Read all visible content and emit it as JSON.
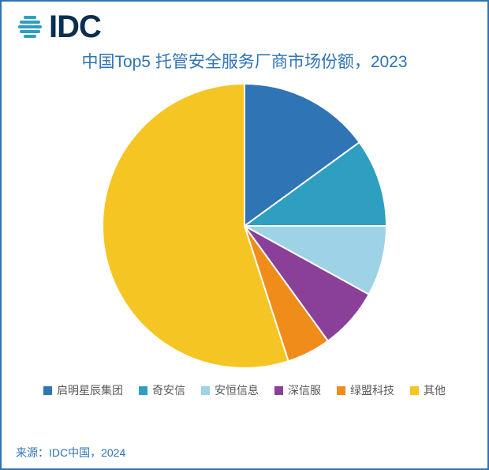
{
  "logo": {
    "text": "IDC",
    "stripe_color": "#2f9fc1",
    "text_color": "#0b2e4f"
  },
  "title": {
    "text": "中国Top5 托管安全服务厂商市场份额，2023",
    "color": "#2f74b5",
    "fontsize": 21
  },
  "chart": {
    "type": "pie",
    "diameter": 360,
    "background": "#ffffff",
    "start_angle_deg": -90,
    "slices": [
      {
        "label": "启明星辰集团",
        "value": 15,
        "color": "#2f74b5"
      },
      {
        "label": "奇安信",
        "value": 10,
        "color": "#2f9fc1"
      },
      {
        "label": "安恒信息",
        "value": 8,
        "color": "#9ed2e6"
      },
      {
        "label": "深信服",
        "value": 7,
        "color": "#8a3f98"
      },
      {
        "label": "绿盟科技",
        "value": 5,
        "color": "#f08c1a"
      },
      {
        "label": "其他",
        "value": 55,
        "color": "#f5c524"
      }
    ],
    "stroke": {
      "color": "#ffffff",
      "width": 2
    }
  },
  "legend": {
    "fontsize": 14,
    "text_color": "#595959"
  },
  "source": {
    "text": "来源：IDC中国，2024",
    "color": "#2f74b5",
    "fontsize": 14
  }
}
